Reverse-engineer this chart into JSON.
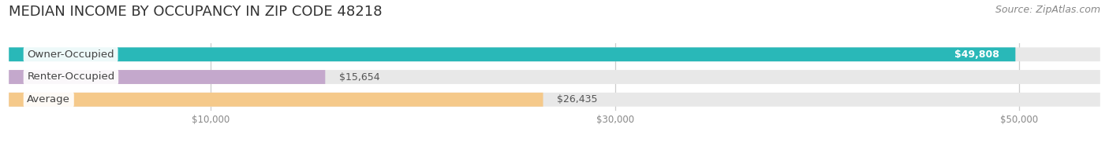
{
  "title": "MEDIAN INCOME BY OCCUPANCY IN ZIP CODE 48218",
  "source": "Source: ZipAtlas.com",
  "categories": [
    "Owner-Occupied",
    "Renter-Occupied",
    "Average"
  ],
  "values": [
    49808,
    15654,
    26435
  ],
  "bar_colors": [
    "#29b8b8",
    "#c4a8cc",
    "#f5c98a"
  ],
  "bar_bg_color": "#e8e8e8",
  "value_labels": [
    "$49,808",
    "$15,654",
    "$26,435"
  ],
  "value_inside": [
    true,
    false,
    false
  ],
  "xlim_max": 54000,
  "xticks": [
    10000,
    30000,
    50000
  ],
  "xtick_labels": [
    "$10,000",
    "$30,000",
    "$50,000"
  ],
  "title_fontsize": 13,
  "source_fontsize": 9,
  "label_fontsize": 9.5,
  "value_fontsize": 9,
  "bar_height": 0.62,
  "background_color": "#ffffff",
  "grid_color": "#cccccc",
  "label_text_color": "#444444",
  "value_inside_color": "#ffffff",
  "value_outside_color": "#555555"
}
